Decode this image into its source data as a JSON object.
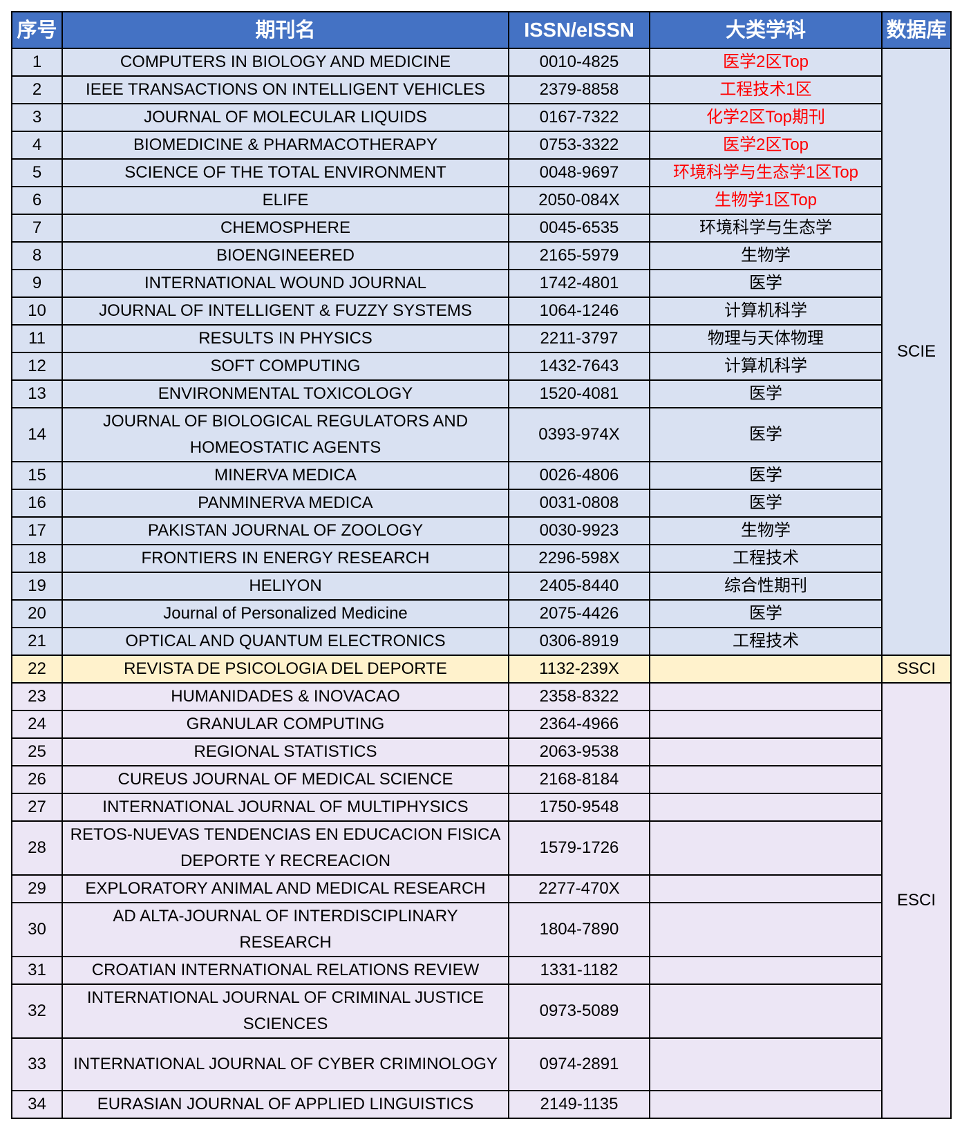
{
  "headers": [
    "序号",
    "期刊名",
    "ISSN/eISSN",
    "大类学科",
    "数据库"
  ],
  "colors": {
    "header": "#4472C4",
    "scie_row": "#D9E1F2",
    "ssci_row": "#FFF2CC",
    "esci_row": "#ECE6F5",
    "highlight_text": "#FF0000"
  },
  "databases": {
    "scie": "SCIE",
    "ssci": "SSCI",
    "esci": "ESCI"
  },
  "rows": [
    {
      "no": "1",
      "name": "COMPUTERS IN BIOLOGY AND MEDICINE",
      "issn": "0010-4825",
      "subject": "医学2区Top",
      "highlight": true,
      "db": "scie"
    },
    {
      "no": "2",
      "name": "IEEE TRANSACTIONS ON INTELLIGENT VEHICLES",
      "issn": "2379-8858",
      "subject": "工程技术1区",
      "highlight": true,
      "db": "scie"
    },
    {
      "no": "3",
      "name": "JOURNAL OF MOLECULAR LIQUIDS",
      "issn": "0167-7322",
      "subject": "化学2区Top期刊",
      "highlight": true,
      "db": "scie"
    },
    {
      "no": "4",
      "name": "BIOMEDICINE & PHARMACOTHERAPY",
      "issn": "0753-3322",
      "subject": "医学2区Top",
      "highlight": true,
      "db": "scie"
    },
    {
      "no": "5",
      "name": "SCIENCE OF THE TOTAL ENVIRONMENT",
      "issn": "0048-9697",
      "subject": "环境科学与生态学1区Top",
      "highlight": true,
      "db": "scie"
    },
    {
      "no": "6",
      "name": "ELIFE",
      "issn": "2050-084X",
      "subject": "生物学1区Top",
      "highlight": true,
      "db": "scie"
    },
    {
      "no": "7",
      "name": "CHEMOSPHERE",
      "issn": "0045-6535",
      "subject": "环境科学与生态学",
      "db": "scie"
    },
    {
      "no": "8",
      "name": "BIOENGINEERED",
      "issn": "2165-5979",
      "subject": "生物学",
      "db": "scie"
    },
    {
      "no": "9",
      "name": "INTERNATIONAL WOUND JOURNAL",
      "issn": "1742-4801",
      "subject": "医学",
      "db": "scie"
    },
    {
      "no": "10",
      "name": "JOURNAL OF INTELLIGENT & FUZZY SYSTEMS",
      "issn": "1064-1246",
      "subject": "计算机科学",
      "db": "scie"
    },
    {
      "no": "11",
      "name": "RESULTS IN PHYSICS",
      "issn": "2211-3797",
      "subject": "物理与天体物理",
      "db": "scie"
    },
    {
      "no": "12",
      "name": "SOFT COMPUTING",
      "issn": "1432-7643",
      "subject": "计算机科学",
      "db": "scie"
    },
    {
      "no": "13",
      "name": "ENVIRONMENTAL TOXICOLOGY",
      "issn": "1520-4081",
      "subject": "医学",
      "db": "scie"
    },
    {
      "no": "14",
      "name": "JOURNAL OF BIOLOGICAL REGULATORS AND HOMEOSTATIC AGENTS",
      "issn": "0393-974X",
      "subject": "医学",
      "db": "scie",
      "tall": true
    },
    {
      "no": "15",
      "name": "MINERVA MEDICA",
      "issn": "0026-4806",
      "subject": "医学",
      "db": "scie"
    },
    {
      "no": "16",
      "name": "PANMINERVA MEDICA",
      "issn": "0031-0808",
      "subject": "医学",
      "db": "scie"
    },
    {
      "no": "17",
      "name": "PAKISTAN JOURNAL OF ZOOLOGY",
      "issn": "0030-9923",
      "subject": "生物学",
      "db": "scie"
    },
    {
      "no": "18",
      "name": "FRONTIERS IN ENERGY RESEARCH",
      "issn": "2296-598X",
      "subject": "工程技术",
      "db": "scie"
    },
    {
      "no": "19",
      "name": "HELIYON",
      "issn": "2405-8440",
      "subject": "综合性期刊",
      "db": "scie"
    },
    {
      "no": "20",
      "name": "Journal of Personalized Medicine",
      "issn": "2075-4426",
      "subject": "医学",
      "db": "scie"
    },
    {
      "no": "21",
      "name": "OPTICAL AND QUANTUM ELECTRONICS",
      "issn": "0306-8919",
      "subject": "工程技术",
      "db": "scie"
    },
    {
      "no": "22",
      "name": "REVISTA DE PSICOLOGIA DEL DEPORTE",
      "issn": "1132-239X",
      "subject": "",
      "db": "ssci"
    },
    {
      "no": "23",
      "name": "HUMANIDADES & INOVACAO",
      "issn": "2358-8322",
      "subject": "",
      "db": "esci"
    },
    {
      "no": "24",
      "name": "GRANULAR COMPUTING",
      "issn": "2364-4966",
      "subject": "",
      "db": "esci"
    },
    {
      "no": "25",
      "name": "REGIONAL STATISTICS",
      "issn": "2063-9538",
      "subject": "",
      "db": "esci"
    },
    {
      "no": "26",
      "name": "CUREUS JOURNAL OF MEDICAL SCIENCE",
      "issn": "2168-8184",
      "subject": "",
      "db": "esci"
    },
    {
      "no": "27",
      "name": "INTERNATIONAL JOURNAL OF MULTIPHYSICS",
      "issn": "1750-9548",
      "subject": "",
      "db": "esci"
    },
    {
      "no": "28",
      "name": "RETOS-NUEVAS TENDENCIAS EN EDUCACION FISICA DEPORTE Y RECREACION",
      "issn": "1579-1726",
      "subject": "",
      "db": "esci",
      "tall": true
    },
    {
      "no": "29",
      "name": "EXPLORATORY ANIMAL AND MEDICAL RESEARCH",
      "issn": "2277-470X",
      "subject": "",
      "db": "esci"
    },
    {
      "no": "30",
      "name": "AD ALTA-JOURNAL OF INTERDISCIPLINARY RESEARCH",
      "issn": "1804-7890",
      "subject": "",
      "db": "esci",
      "tall": true
    },
    {
      "no": "31",
      "name": "CROATIAN INTERNATIONAL RELATIONS REVIEW",
      "issn": "1331-1182",
      "subject": "",
      "db": "esci"
    },
    {
      "no": "32",
      "name": "INTERNATIONAL JOURNAL OF CRIMINAL JUSTICE SCIENCES",
      "issn": "0973-5089",
      "subject": "",
      "db": "esci",
      "tall": true
    },
    {
      "no": "33",
      "name": "INTERNATIONAL JOURNAL OF CYBER CRIMINOLOGY",
      "issn": "0974-2891",
      "subject": "",
      "db": "esci",
      "tall": true
    },
    {
      "no": "34",
      "name": "EURASIAN JOURNAL OF APPLIED LINGUISTICS",
      "issn": "2149-1135",
      "subject": "",
      "db": "esci"
    }
  ]
}
